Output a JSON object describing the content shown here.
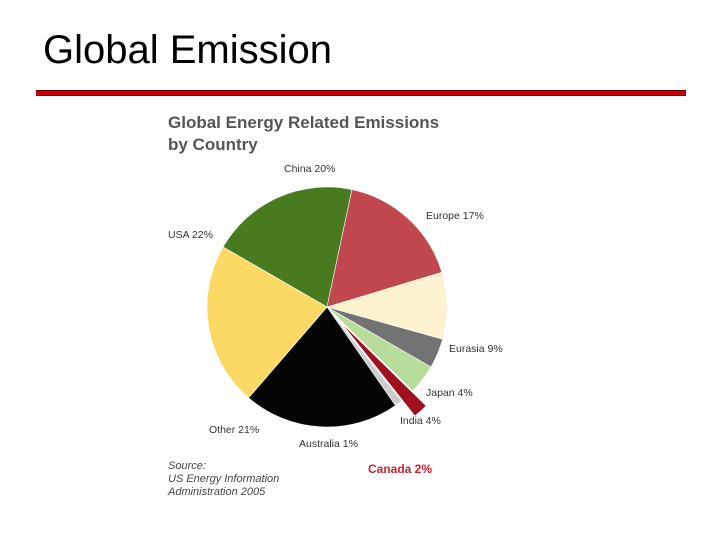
{
  "slide": {
    "title": "Global Emission"
  },
  "chart_data": {
    "type": "pie",
    "title_lines": [
      "Global Energy Related Emissions",
      "by Country"
    ],
    "slices": [
      {
        "label": "China 20%",
        "value": 20,
        "color": "#4a7a1f"
      },
      {
        "label": "Europe 17%",
        "value": 17,
        "color": "#c0474d"
      },
      {
        "label": "Eurasia 9%",
        "value": 9,
        "color": "#fdf2cf"
      },
      {
        "label": "Japan 4%",
        "value": 4,
        "color": "#737373"
      },
      {
        "label": "India 4%",
        "value": 4,
        "color": "#b8dc9c"
      },
      {
        "label": "Canada 2%",
        "value": 2,
        "color": "#a0111f",
        "exploded": true
      },
      {
        "label": "Australia 1%",
        "value": 1,
        "color": "#cccccc"
      },
      {
        "label": "Other 21%",
        "value": 21,
        "color": "#050505"
      },
      {
        "label": "USA 22%",
        "value": 22,
        "color": "#fcd864"
      }
    ],
    "source_lines": [
      "Source:",
      "US Energy Information",
      "Administration 2005"
    ]
  }
}
